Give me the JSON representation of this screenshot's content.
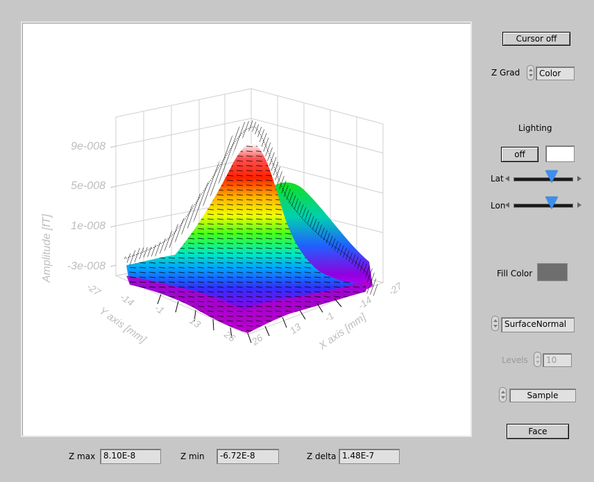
{
  "plot": {
    "z_axis_label": "Amplitude [fT]",
    "z_ticks": [
      "9e-008",
      "5e-008",
      "1e-008",
      "-3e-008"
    ],
    "y_axis_label": "Y axis [mm]",
    "y_ticks": [
      "-27",
      "-14",
      "-1",
      "13",
      "26"
    ],
    "x_axis_label": "X axis [mm]",
    "x_ticks": [
      "26",
      "13",
      "-1",
      "-14",
      "-27"
    ]
  },
  "controls": {
    "cursor_button": "Cursor off",
    "zgrad_label": "Z Grad",
    "zgrad_value": "Color",
    "lighting_title": "Lighting",
    "lighting_button": "off",
    "lighting_color": "#ffffff",
    "lat_label": "Lat",
    "lat_value": 0.62,
    "lon_label": "Lon",
    "lon_value": 0.62,
    "fill_color_label": "Fill Color",
    "fill_color": "#6e6e6e",
    "display_mode": "SurfaceNormal",
    "levels_label": "Levels",
    "levels_value": "10",
    "sample_value": "Sample",
    "face_button": "Face"
  },
  "stats": {
    "zmax_label": "Z max",
    "zmax_value": "8.10E-8",
    "zmin_label": "Z min",
    "zmin_value": "-6.72E-8",
    "zdelta_label": "Z delta",
    "zdelta_value": "1.48E-7"
  }
}
